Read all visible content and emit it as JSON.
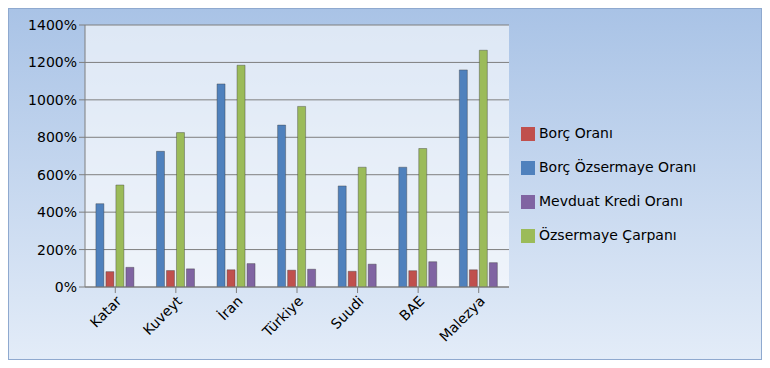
{
  "chart_data": {
    "type": "bar",
    "categories": [
      "Katar",
      "Kuveyt",
      "İran",
      "Türkiye",
      "Suudi",
      "BAE",
      "Malezya"
    ],
    "series": [
      {
        "name": "Borç Özsermaye Oranı",
        "color": "#4f81bd",
        "values": [
          445,
          725,
          1085,
          865,
          540,
          640,
          1160
        ]
      },
      {
        "name": "Borç Oranı",
        "color": "#c0504d",
        "values": [
          82,
          88,
          92,
          90,
          84,
          87,
          92
        ]
      },
      {
        "name": "Özsermaye Çarpanı",
        "color": "#9bbb59",
        "values": [
          545,
          825,
          1185,
          965,
          640,
          740,
          1265
        ]
      },
      {
        "name": "Mevduat Kredi Oranı",
        "color": "#8064a2",
        "values": [
          105,
          97,
          125,
          95,
          122,
          135,
          130
        ]
      }
    ],
    "ylim": [
      0,
      1400
    ],
    "yticks": [
      {
        "value": 0,
        "label": "0%"
      },
      {
        "value": 200,
        "label": "200%"
      },
      {
        "value": 400,
        "label": "400%"
      },
      {
        "value": 600,
        "label": "600%"
      },
      {
        "value": 800,
        "label": "800%"
      },
      {
        "value": 1000,
        "label": "1000%"
      },
      {
        "value": 1200,
        "label": "1200%"
      },
      {
        "value": 1400,
        "label": "1400%"
      }
    ],
    "grid": true,
    "legend": "right"
  }
}
